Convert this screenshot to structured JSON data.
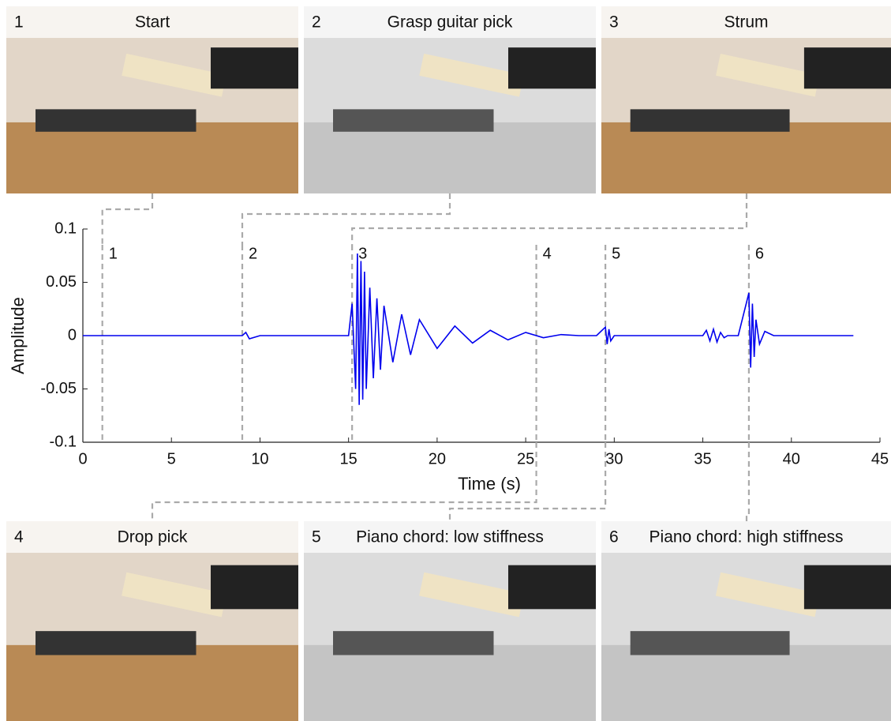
{
  "panels": [
    {
      "number": "1",
      "caption": "Start"
    },
    {
      "number": "2",
      "caption": "Grasp guitar pick"
    },
    {
      "number": "3",
      "caption": "Strum"
    },
    {
      "number": "4",
      "caption": "Drop pick"
    },
    {
      "number": "5",
      "caption": "Piano chord: low stiffness"
    },
    {
      "number": "6",
      "caption": "Piano chord: high stiffness"
    }
  ],
  "chart_data": {
    "type": "line",
    "x_label": "Time (s)",
    "y_label": "Amplitude",
    "xlim": [
      0,
      45
    ],
    "xticks": [
      0,
      5,
      10,
      15,
      20,
      25,
      30,
      35,
      40,
      45
    ],
    "ylim": [
      -0.1,
      0.1
    ],
    "yticks": [
      -0.1,
      -0.05,
      0,
      0.05,
      0.1
    ],
    "color": "#0000ee",
    "x": [
      0,
      5,
      9,
      9.2,
      9.4,
      10,
      15,
      15.2,
      15.4,
      15.5,
      15.6,
      15.7,
      15.8,
      15.9,
      16,
      16.2,
      16.4,
      16.6,
      16.8,
      17,
      17.5,
      18,
      18.5,
      19,
      20,
      21,
      22,
      23,
      24,
      25,
      26,
      27,
      28,
      29,
      29.5,
      29.6,
      29.7,
      29.8,
      30,
      30.5,
      35,
      35.2,
      35.4,
      35.6,
      35.8,
      36,
      36.2,
      36.4,
      37,
      37.6,
      37.7,
      37.8,
      37.9,
      38,
      38.2,
      38.5,
      39,
      40,
      43.5
    ],
    "values": [
      0,
      0,
      0,
      0.003,
      -0.003,
      0,
      0,
      0.03,
      -0.05,
      0.077,
      -0.065,
      0.07,
      -0.06,
      0.06,
      -0.05,
      0.045,
      -0.04,
      0.035,
      -0.032,
      0.028,
      -0.025,
      0.02,
      -0.018,
      0.015,
      -0.012,
      0.009,
      -0.007,
      0.005,
      -0.004,
      0.003,
      -0.002,
      0.001,
      0,
      0,
      0.008,
      -0.008,
      0.006,
      -0.005,
      0,
      0,
      0,
      0.005,
      -0.005,
      0.006,
      -0.006,
      0.003,
      -0.002,
      0,
      0,
      0.04,
      -0.03,
      0.03,
      -0.02,
      0.015,
      -0.008,
      0.004,
      0,
      0,
      0
    ],
    "events": [
      {
        "x": 1.1,
        "label": "1"
      },
      {
        "x": 9.0,
        "label": "2"
      },
      {
        "x": 15.2,
        "label": "3"
      },
      {
        "x": 25.6,
        "label": "4"
      },
      {
        "x": 29.5,
        "label": "5"
      },
      {
        "x": 37.6,
        "label": "6"
      }
    ]
  }
}
